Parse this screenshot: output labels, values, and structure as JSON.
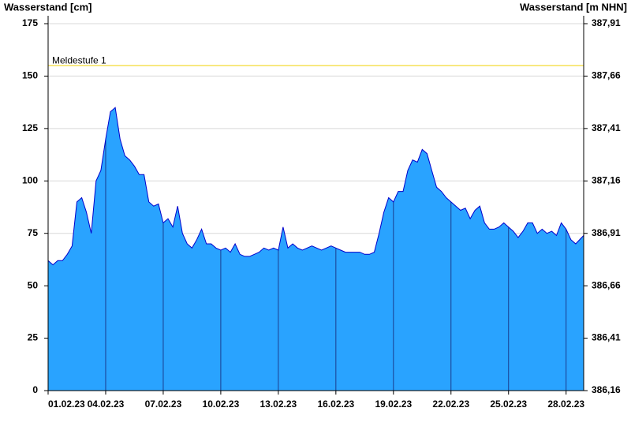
{
  "chart_data": {
    "type": "area",
    "ylabel": "Wasserstand [cm]",
    "y2label": "Wasserstand [m NHN]",
    "ylim": [
      0,
      175
    ],
    "yticks": [
      0,
      25,
      50,
      75,
      100,
      125,
      150,
      175
    ],
    "y2lim": [
      386.16,
      387.91
    ],
    "y2ticks": [
      {
        "value": 386.16,
        "label": "386,16"
      },
      {
        "value": 386.41,
        "label": "386,41"
      },
      {
        "value": 386.66,
        "label": "386,66"
      },
      {
        "value": 386.91,
        "label": "386,91"
      },
      {
        "value": 387.16,
        "label": "387,16"
      },
      {
        "value": 387.41,
        "label": "387,41"
      },
      {
        "value": 387.66,
        "label": "387,66"
      },
      {
        "value": 387.91,
        "label": "387,91"
      }
    ],
    "xlim": [
      "01.02.23 00:00",
      "28.02.23 22:00"
    ],
    "xticks": [
      "01.02.23",
      "04.02.23",
      "07.02.23",
      "10.02.23",
      "13.02.23",
      "16.02.23",
      "19.02.23",
      "22.02.23",
      "25.02.23",
      "28.02.23"
    ],
    "grid": true,
    "annotation": {
      "label": "Meldestufe 1",
      "value": 155,
      "color": "#f0d000"
    },
    "series": [
      {
        "name": "Wasserstand",
        "color": "#29a3ff",
        "line_color": "#0000cc",
        "x": [
          "01.02.23 00:00",
          "01.02.23 06:00",
          "01.02.23 12:00",
          "01.02.23 18:00",
          "02.02.23 00:00",
          "02.02.23 06:00",
          "02.02.23 12:00",
          "02.02.23 18:00",
          "03.02.23 00:00",
          "03.02.23 06:00",
          "03.02.23 12:00",
          "03.02.23 18:00",
          "04.02.23 00:00",
          "04.02.23 06:00",
          "04.02.23 12:00",
          "04.02.23 18:00",
          "05.02.23 00:00",
          "05.02.23 06:00",
          "05.02.23 12:00",
          "05.02.23 18:00",
          "06.02.23 00:00",
          "06.02.23 06:00",
          "06.02.23 12:00",
          "06.02.23 18:00",
          "07.02.23 00:00",
          "07.02.23 06:00",
          "07.02.23 12:00",
          "07.02.23 18:00",
          "08.02.23 00:00",
          "08.02.23 06:00",
          "08.02.23 12:00",
          "08.02.23 18:00",
          "09.02.23 00:00",
          "09.02.23 06:00",
          "09.02.23 12:00",
          "09.02.23 18:00",
          "10.02.23 00:00",
          "10.02.23 06:00",
          "10.02.23 12:00",
          "10.02.23 18:00",
          "11.02.23 00:00",
          "11.02.23 06:00",
          "11.02.23 12:00",
          "11.02.23 18:00",
          "12.02.23 00:00",
          "12.02.23 06:00",
          "12.02.23 12:00",
          "12.02.23 18:00",
          "13.02.23 00:00",
          "13.02.23 06:00",
          "13.02.23 12:00",
          "13.02.23 18:00",
          "14.02.23 00:00",
          "14.02.23 06:00",
          "14.02.23 12:00",
          "14.02.23 18:00",
          "15.02.23 00:00",
          "15.02.23 06:00",
          "15.02.23 12:00",
          "15.02.23 18:00",
          "16.02.23 00:00",
          "16.02.23 06:00",
          "16.02.23 12:00",
          "16.02.23 18:00",
          "17.02.23 00:00",
          "17.02.23 06:00",
          "17.02.23 12:00",
          "17.02.23 18:00",
          "18.02.23 00:00",
          "18.02.23 06:00",
          "18.02.23 12:00",
          "18.02.23 18:00",
          "19.02.23 00:00",
          "19.02.23 06:00",
          "19.02.23 12:00",
          "19.02.23 18:00",
          "20.02.23 00:00",
          "20.02.23 06:00",
          "20.02.23 12:00",
          "20.02.23 18:00",
          "21.02.23 00:00",
          "21.02.23 06:00",
          "21.02.23 12:00",
          "21.02.23 18:00",
          "22.02.23 00:00",
          "22.02.23 06:00",
          "22.02.23 12:00",
          "22.02.23 18:00",
          "23.02.23 00:00",
          "23.02.23 06:00",
          "23.02.23 12:00",
          "23.02.23 18:00",
          "24.02.23 00:00",
          "24.02.23 06:00",
          "24.02.23 12:00",
          "24.02.23 18:00",
          "25.02.23 00:00",
          "25.02.23 06:00",
          "25.02.23 12:00",
          "25.02.23 18:00",
          "26.02.23 00:00",
          "26.02.23 06:00",
          "26.02.23 12:00",
          "26.02.23 18:00",
          "27.02.23 00:00",
          "27.02.23 06:00",
          "27.02.23 12:00",
          "27.02.23 18:00",
          "28.02.23 00:00",
          "28.02.23 06:00",
          "28.02.23 12:00",
          "28.02.23 22:00"
        ],
        "values": [
          62,
          60,
          62,
          62,
          65,
          69,
          90,
          92,
          85,
          75,
          100,
          105,
          120,
          133,
          135,
          120,
          112,
          110,
          107,
          103,
          103,
          90,
          88,
          89,
          80,
          82,
          78,
          88,
          75,
          70,
          68,
          72,
          77,
          70,
          70,
          68,
          67,
          68,
          66,
          70,
          65,
          64,
          64,
          65,
          66,
          68,
          67,
          68,
          67,
          78,
          68,
          70,
          68,
          67,
          68,
          69,
          68,
          67,
          68,
          69,
          68,
          67,
          66,
          66,
          66,
          66,
          65,
          65,
          66,
          75,
          85,
          92,
          90,
          95,
          95,
          105,
          110,
          109,
          115,
          113,
          105,
          97,
          95,
          92,
          90,
          88,
          86,
          87,
          82,
          86,
          88,
          80,
          77,
          77,
          78,
          80,
          78,
          76,
          73,
          76,
          80,
          80,
          75,
          77,
          75,
          76,
          74,
          80,
          77,
          72,
          70,
          74
        ]
      }
    ]
  }
}
